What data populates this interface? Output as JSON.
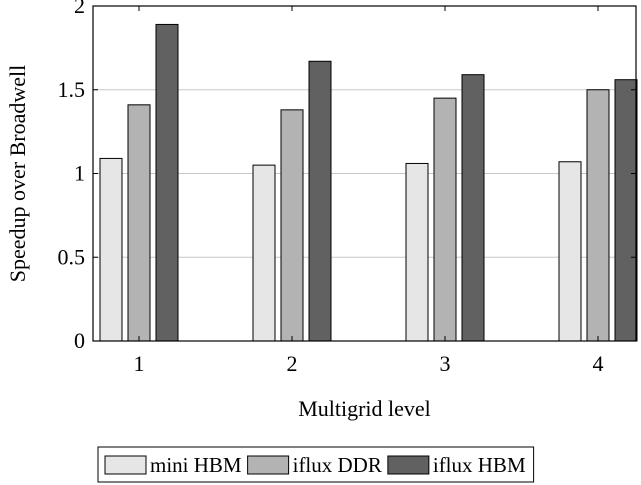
{
  "chart_data": {
    "type": "bar",
    "title": "",
    "xlabel": "Multigrid level",
    "ylabel": "Speedup over Broadwell",
    "categories": [
      "1",
      "2",
      "3",
      "4"
    ],
    "ylim": [
      0,
      2
    ],
    "yticks": [
      "0",
      "0.5",
      "1",
      "1.5",
      "2"
    ],
    "grid": "horizontal",
    "legend_position": "bottom",
    "series": [
      {
        "name": "mini HBM",
        "color": "#e6e6e6",
        "values": [
          1.09,
          1.05,
          1.06,
          1.07
        ]
      },
      {
        "name": "iflux DDR",
        "color": "#b3b3b3",
        "values": [
          1.41,
          1.38,
          1.45,
          1.5
        ]
      },
      {
        "name": "iflux HBM",
        "color": "#616161",
        "values": [
          1.89,
          1.67,
          1.59,
          1.56
        ]
      }
    ]
  }
}
